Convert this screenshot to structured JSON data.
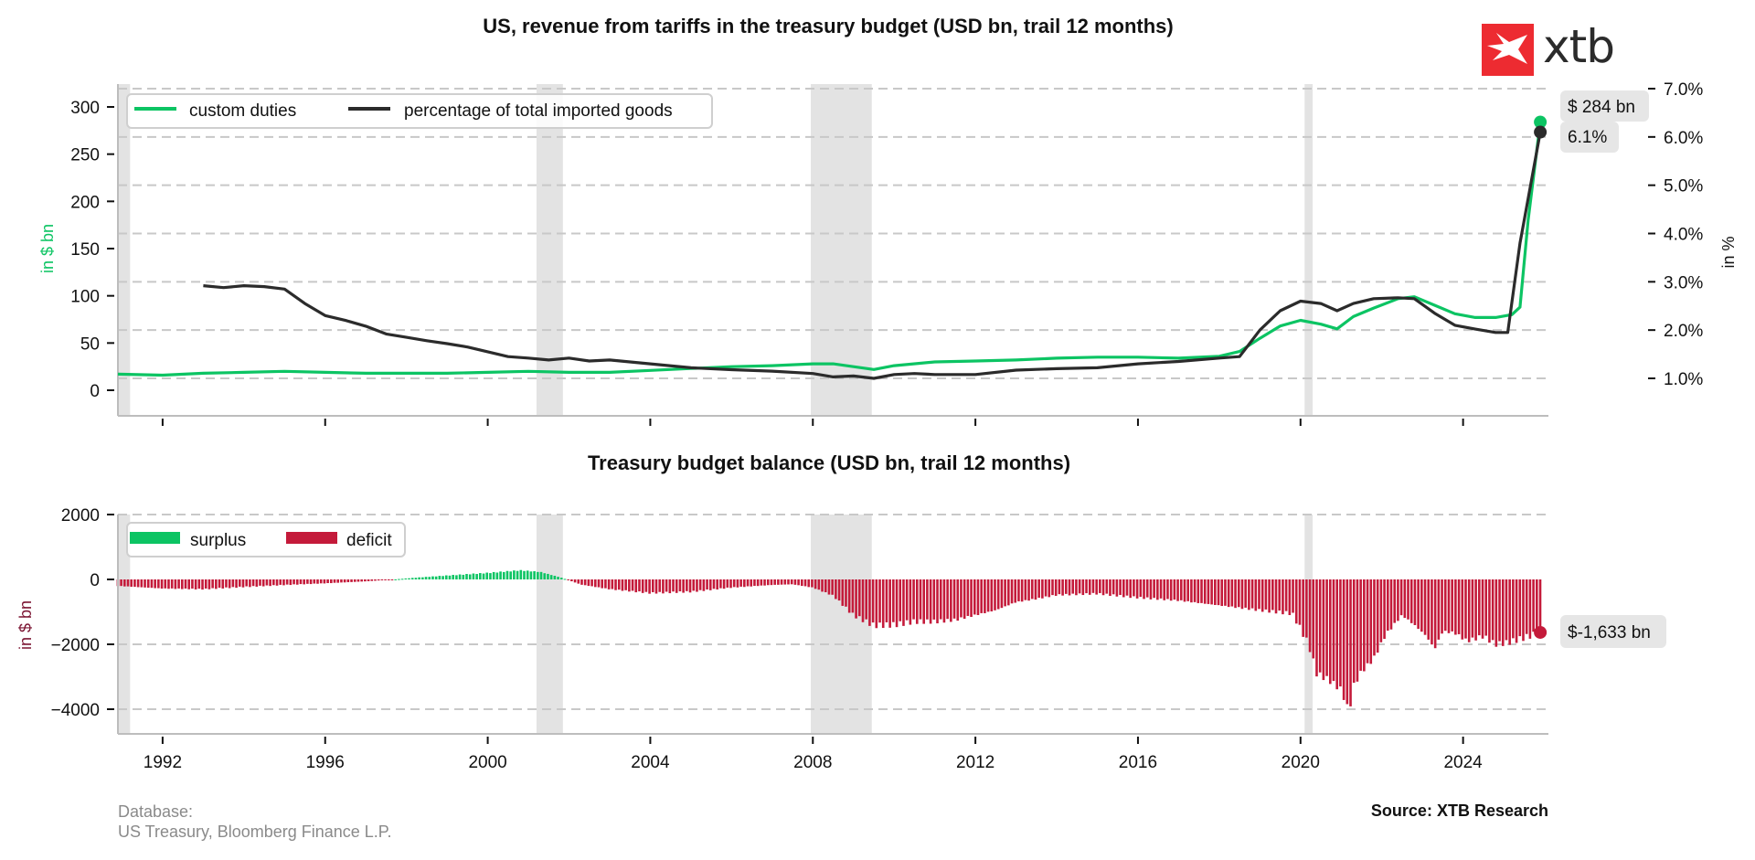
{
  "brand": {
    "name": "xtb",
    "logo_color": "#ed2b31"
  },
  "footer": {
    "database_label": "Database:",
    "database_value": "US Treasury, Bloomberg Finance L.P.",
    "source": "Source: XTB Research"
  },
  "colors": {
    "custom_duties": "#0cc463",
    "percentage": "#2b2b2b",
    "surplus": "#0cc463",
    "deficit": "#c41a3a",
    "recession": "#e3e3e3",
    "grid": "#c8c8c8"
  },
  "chart_data": [
    {
      "type": "line",
      "title": "US, revenue from tariffs in the treasury budget (USD bn, trail 12 months)",
      "xlabel": "",
      "ylabel": "in $ bn",
      "ylabel_right": "in %",
      "xlim": [
        1990.9,
        2026.1
      ],
      "ylim": [
        -25,
        328
      ],
      "ylim_right": [
        0.3,
        7.1
      ],
      "yticks": [
        0,
        50,
        100,
        150,
        200,
        250,
        300
      ],
      "yticks_right": [
        "1.0%",
        "2.0%",
        "3.0%",
        "4.0%",
        "5.0%",
        "6.0%",
        "7.0%"
      ],
      "yticks_right_values": [
        1,
        2,
        3,
        4,
        5,
        6,
        7
      ],
      "grid": "dashed horizontal (right axis)",
      "legend": {
        "placement": "top-left",
        "entries": [
          "custom duties",
          "percentage of total imported goods"
        ]
      },
      "recessions": [
        [
          1990.9,
          1991.2
        ],
        [
          2001.2,
          2001.85
        ],
        [
          2007.95,
          2009.45
        ],
        [
          2020.1,
          2020.3
        ]
      ],
      "series": [
        {
          "name": "custom duties",
          "axis": "left",
          "x": [
            1990.9,
            1992,
            1993,
            1994,
            1995,
            1996,
            1997,
            1998,
            1999,
            2000,
            2001,
            2002,
            2003,
            2004,
            2005,
            2006,
            2007,
            2008,
            2008.5,
            2009,
            2009.5,
            2010,
            2011,
            2012,
            2013,
            2014,
            2015,
            2016,
            2017,
            2018,
            2018.5,
            2019,
            2019.5,
            2020,
            2020.5,
            2020.9,
            2021.3,
            2021.8,
            2022.4,
            2022.8,
            2023.3,
            2023.8,
            2024.3,
            2024.8,
            2025.2,
            2025.4,
            2025.6,
            2025.9
          ],
          "values": [
            17,
            16,
            18,
            19,
            20,
            19,
            18,
            18,
            18,
            19,
            20,
            19,
            19,
            21,
            23,
            25,
            26,
            28,
            28,
            25,
            22,
            26,
            30,
            31,
            32,
            34,
            35,
            35,
            34,
            36,
            41,
            55,
            68,
            74,
            70,
            65,
            78,
            87,
            97,
            99,
            90,
            81,
            77,
            77,
            80,
            88,
            180,
            284
          ],
          "end_label": "$ 284 bn"
        },
        {
          "name": "percentage of total imported goods",
          "axis": "right",
          "x": [
            1993,
            1993.5,
            1994,
            1994.5,
            1995,
            1995.5,
            1996,
            1996.5,
            1997,
            1997.5,
            1998,
            1998.5,
            1999,
            1999.5,
            2000,
            2000.5,
            2001,
            2001.5,
            2002,
            2002.5,
            2003,
            2004,
            2005,
            2006,
            2007,
            2008,
            2008.5,
            2009,
            2009.5,
            2010,
            2010.5,
            2011,
            2012,
            2013,
            2014,
            2015,
            2016,
            2017,
            2018,
            2018.5,
            2019,
            2019.5,
            2020,
            2020.5,
            2020.9,
            2021.3,
            2021.8,
            2022.4,
            2022.8,
            2023.3,
            2023.8,
            2024.3,
            2024.8,
            2025.1,
            2025.4,
            2025.9
          ],
          "values": [
            2.92,
            2.88,
            2.92,
            2.9,
            2.85,
            2.55,
            2.3,
            2.2,
            2.08,
            1.92,
            1.85,
            1.78,
            1.72,
            1.65,
            1.55,
            1.45,
            1.42,
            1.38,
            1.42,
            1.36,
            1.38,
            1.3,
            1.22,
            1.18,
            1.15,
            1.1,
            1.03,
            1.05,
            1.0,
            1.08,
            1.1,
            1.08,
            1.08,
            1.17,
            1.2,
            1.22,
            1.3,
            1.35,
            1.42,
            1.45,
            2.0,
            2.4,
            2.6,
            2.55,
            2.4,
            2.55,
            2.65,
            2.67,
            2.65,
            2.35,
            2.1,
            2.02,
            1.95,
            1.95,
            3.8,
            6.1
          ],
          "end_label": "6.1%"
        }
      ]
    },
    {
      "type": "bar",
      "title": "Treasury budget balance (USD bn, trail 12 months)",
      "xlabel": "",
      "ylabel": "in $ bn",
      "xlim": [
        1990.9,
        2026.1
      ],
      "ylim": [
        -4800,
        2000
      ],
      "yticks": [
        2000,
        0,
        -2000,
        -4000
      ],
      "xticks": [
        1992,
        1996,
        2000,
        2004,
        2008,
        2012,
        2016,
        2020,
        2024
      ],
      "grid": "dashed horizontal",
      "legend": {
        "placement": "top-left",
        "entries": [
          "surplus",
          "deficit"
        ]
      },
      "recessions": [
        [
          1990.9,
          1991.2
        ],
        [
          2001.2,
          2001.85
        ],
        [
          2007.95,
          2009.45
        ],
        [
          2020.1,
          2020.3
        ]
      ],
      "anchors": {
        "x": [
          1990.9,
          1992,
          1993,
          1994,
          1995,
          1996,
          1997,
          1997.7,
          1998.3,
          1999,
          2000,
          2000.8,
          2001.3,
          2001.8,
          2002.3,
          2003,
          2004,
          2005,
          2006,
          2007,
          2007.5,
          2008,
          2008.5,
          2009,
          2009.5,
          2010,
          2010.5,
          2011,
          2011.5,
          2012,
          2012.5,
          2013,
          2013.5,
          2014,
          2015,
          2016,
          2017,
          2018,
          2019,
          2019.8,
          2020.2,
          2020.4,
          2020.7,
          2021.0,
          2021.2,
          2021.3,
          2021.5,
          2021.8,
          2022.1,
          2022.5,
          2022.8,
          2023.1,
          2023.3,
          2023.5,
          2023.8,
          2024.1,
          2024.5,
          2024.8,
          2025.1,
          2025.5,
          2025.9
        ],
        "values": [
          -200,
          -280,
          -300,
          -230,
          -170,
          -120,
          -60,
          0,
          60,
          120,
          200,
          280,
          230,
          60,
          -160,
          -300,
          -420,
          -380,
          -250,
          -170,
          -150,
          -250,
          -500,
          -1100,
          -1420,
          -1400,
          -1300,
          -1300,
          -1250,
          -1100,
          -950,
          -700,
          -600,
          -480,
          -440,
          -560,
          -650,
          -800,
          -950,
          -1050,
          -2000,
          -2900,
          -3100,
          -3400,
          -4100,
          -3300,
          -2850,
          -2450,
          -1700,
          -1100,
          -1400,
          -1750,
          -2150,
          -1600,
          -1650,
          -1900,
          -1750,
          -2000,
          -1950,
          -1800,
          -1633
        ]
      },
      "end_label": "$-1,633 bn"
    }
  ]
}
